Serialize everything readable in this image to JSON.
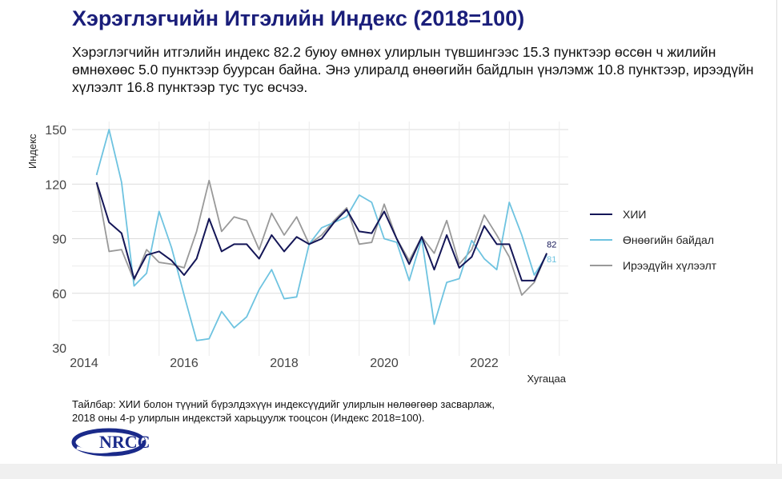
{
  "title": "Хэрэглэгчийн Итгэлийн Индекс (2018=100)",
  "summary": "Хэрэглэгчийн итгэлийн индекс 82.2 буюу өмнөх улирлын түвшингээс 15.3 пунктээр өссөн ч жилийн өмнөхөөс 5.0 пунктээр буурсан байна. Энэ улиралд өнөөгийн байдлын үнэлэмж 10.8 пунктээр, ирээдүйн хүлээлт 16.8 пунктээр тус тус өсчээ.",
  "note_line1": "Тайлбар: ХИИ болон түүний бүрэлдэхүүн индексүүдийг улирлын нөлөөгөөр засварлаж,",
  "note_line2": "2018 оны 4-р улирлын индекстэй харьцуулж тооцсон (Индекс 2018=100).",
  "logo_text": "NRCC",
  "chart_data": {
    "type": "line",
    "title": "",
    "xlabel": "Хугацаа",
    "ylabel": "Индекс",
    "xlim": [
      2014.0,
      2023.5
    ],
    "ylim": [
      30,
      155
    ],
    "x_ticks": [
      2014,
      2016,
      2018,
      2020,
      2022
    ],
    "y_ticks": [
      30,
      60,
      90,
      120,
      150
    ],
    "grid": true,
    "legend_position": "right",
    "x_start": 2014.25,
    "x_step": 0.25,
    "series": [
      {
        "name": "ХИИ",
        "color": "#141657",
        "end_label": "82",
        "values": [
          121,
          99,
          93,
          68,
          81,
          83,
          78,
          70,
          79,
          101,
          83,
          87,
          87,
          79,
          92,
          83,
          91,
          87,
          90,
          99,
          106,
          94,
          93,
          105,
          90,
          76,
          91,
          73,
          92,
          74,
          80,
          97,
          87,
          87,
          67,
          67,
          82
        ]
      },
      {
        "name": "Өнөөгийн байдал",
        "color": "#6ec3e0",
        "end_label": "81",
        "values": [
          125,
          150,
          121,
          64,
          71,
          105,
          85,
          59,
          34,
          35,
          50,
          41,
          47,
          62,
          73,
          57,
          58,
          87,
          96,
          99,
          102,
          114,
          110,
          90,
          88,
          67,
          90,
          43,
          66,
          68,
          89,
          79,
          73,
          110,
          92,
          70,
          81
        ]
      },
      {
        "name": "Ирээдүйн хүлээлт",
        "color": "#999999",
        "end_label": "",
        "values": [
          121,
          83,
          84,
          67,
          84,
          77,
          76,
          74,
          94,
          122,
          94,
          102,
          100,
          84,
          104,
          92,
          102,
          87,
          92,
          100,
          107,
          87,
          88,
          109,
          90,
          78,
          91,
          82,
          100,
          76,
          84,
          103,
          92,
          80,
          59,
          66,
          82
        ]
      }
    ]
  }
}
